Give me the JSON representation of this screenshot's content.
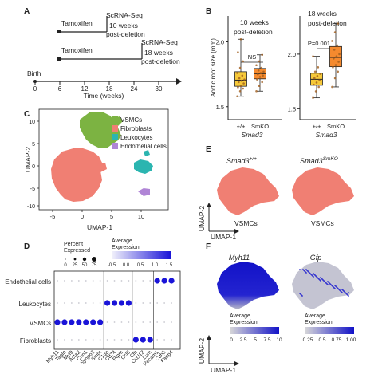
{
  "panels": {
    "A": "A",
    "B": "B",
    "C": "C",
    "D": "D",
    "E": "E",
    "F": "F"
  },
  "panelA": {
    "row1_drug": "Tamoxifen",
    "row1_label1": "ScRNA-Seq",
    "row1_label2": "10 weeks",
    "row1_label3": "post-deletion",
    "row2_drug": "Tamoxifen",
    "row2_label1": "ScRNA-Seq",
    "row2_label2": "18 weeks",
    "row2_label3": "post-deletion",
    "birth": "Birth",
    "ticks": [
      "0",
      "6",
      "12",
      "18",
      "24",
      "30"
    ],
    "axis_title": "Time (weeks)"
  },
  "panelB": {
    "ylabel": "Aortic root size (mm)",
    "left_title1": "10 weeks",
    "left_title2": "post-deletion",
    "left_stat": "NS",
    "right_title1": "18 weeks",
    "right_title2": "post-deletion",
    "right_stat": "P=0.001",
    "yticks": [
      "1.5",
      "2.0"
    ],
    "xcat_wt": "+/+",
    "xcat_ko": "SmKO",
    "gene": "Smad3"
  },
  "panelC": {
    "legend": [
      {
        "label": "VSMCs",
        "color": "#7cb342"
      },
      {
        "label": "Fibroblasts",
        "color": "#f07f73"
      },
      {
        "label": "Leukocytes",
        "color": "#2bb5b0"
      },
      {
        "label": "Endothelial cells",
        "color": "#b085d6"
      }
    ],
    "xlabel": "UMAP-1",
    "ylabel": "UMAP-2",
    "xticks": [
      "-5",
      "0",
      "5",
      "10"
    ],
    "yticks": [
      "10",
      "5",
      "0",
      "-5",
      "-10"
    ]
  },
  "panelD": {
    "size_title1": "Percent",
    "size_title2": "Expressed",
    "size_ticks": [
      "0",
      "25",
      "50",
      "75"
    ],
    "color_title1": "Average",
    "color_title2": "Expression",
    "color_ticks": [
      "-0.5",
      "0.0",
      "0.5",
      "1.0",
      "1.5"
    ],
    "rows": [
      "Endothelial cells",
      "Leukocytes",
      "VSMCs",
      "Fibroblasts"
    ],
    "genes": [
      "Myh11",
      "Tagln",
      "Myl9",
      "Acta2",
      "Cnn1",
      "Synpo2",
      "Smtn",
      "C1qa",
      "Cd74",
      "Ptprc",
      "Ccl5",
      "Cfh",
      "Cxcl12",
      "Lum",
      "Pecam1",
      "Cdh5",
      "Fabp4"
    ],
    "cluster_divider_after": [
      6,
      10,
      13
    ]
  },
  "panelE": {
    "title_left": "Smad3",
    "title_left_sup": "+/+",
    "title_right": "Smad3",
    "title_right_sup": "SmKO",
    "label_left": "VSMCs",
    "label_right": "VSMCs",
    "xlabel": "UMAP-1",
    "ylabel": "UMAP-2"
  },
  "panelF": {
    "title_left": "Myh11",
    "title_right": "Gfp",
    "legend_left_title1": "Average",
    "legend_left_title2": "Expression",
    "legend_left_ticks": [
      "0",
      "2.5",
      "5",
      "7.5",
      "10"
    ],
    "legend_right_title1": "Average",
    "legend_right_title2": "Expression",
    "legend_right_ticks": [
      "0.25",
      "0.5",
      "0.75",
      "1.00"
    ],
    "xlabel": "UMAP-1",
    "ylabel": "UMAP-2",
    "colors": {
      "high": "#1212c8",
      "low": "#d8d8d8"
    }
  },
  "chart_data": [
    {
      "type": "scatter",
      "title": "10 weeks post-deletion",
      "ylabel": "Aortic root size (mm)",
      "xlabel": "Smad3",
      "categories": [
        "+/+",
        "SmKO"
      ],
      "ylim": [
        1.5,
        2.25
      ],
      "series": [
        {
          "name": "+/+",
          "values": [
            1.58,
            1.62,
            1.64,
            1.65,
            1.66,
            1.68,
            1.69,
            1.7,
            1.71,
            1.72,
            1.74,
            1.76,
            1.8,
            1.85,
            1.92,
            2.02
          ]
        },
        {
          "name": "SmKO",
          "values": [
            1.62,
            1.66,
            1.69,
            1.71,
            1.73,
            1.74,
            1.75,
            1.76,
            1.77,
            1.78,
            1.8,
            1.82,
            1.85,
            1.9
          ]
        }
      ]
    },
    {
      "type": "scatter",
      "title": "18 weeks post-deletion",
      "ylabel": "Aortic root size (mm)",
      "xlabel": "Smad3",
      "categories": [
        "+/+",
        "SmKO"
      ],
      "ylim": [
        1.5,
        2.3
      ],
      "series": [
        {
          "name": "+/+",
          "values": [
            1.6,
            1.66,
            1.7,
            1.72,
            1.74,
            1.76,
            1.78,
            1.8,
            1.82,
            1.84,
            1.88,
            1.98
          ]
        },
        {
          "name": "SmKO",
          "values": [
            1.7,
            1.78,
            1.84,
            1.88,
            1.9,
            1.93,
            1.96,
            1.98,
            2.0,
            2.04,
            2.08,
            2.12,
            2.2,
            2.28
          ]
        }
      ]
    }
  ]
}
